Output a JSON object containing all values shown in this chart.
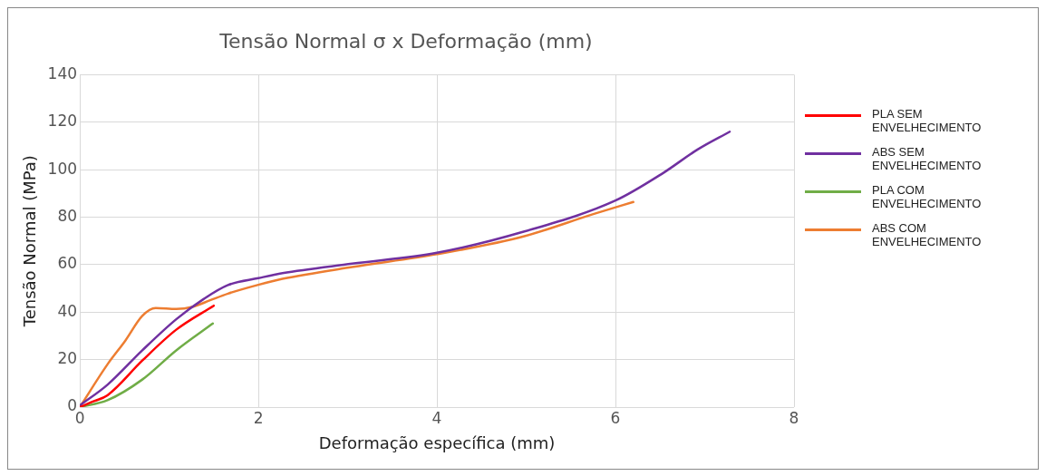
{
  "chart_data": {
    "type": "line",
    "title": "Tensão Normal σ x Deformação (mm)",
    "xlabel": "Deformação específica (mm)",
    "ylabel": "Tensão Normal (MPa)",
    "xlim": [
      0,
      8
    ],
    "xticks": [
      0,
      2,
      4,
      6,
      8
    ],
    "ylim": [
      0,
      140
    ],
    "yticks": [
      0,
      20,
      40,
      60,
      80,
      100,
      120,
      140
    ],
    "grid": true,
    "legend": "right",
    "marker": "none",
    "line_style": "solid",
    "series": [
      {
        "name": "PLA SEM ENVELHECIMENTO",
        "color": "#ff0000",
        "x": [
          0,
          0.16,
          0.31,
          0.7,
          1.08,
          1.5
        ],
        "values": [
          0,
          2.5,
          5,
          19.6,
          32.6,
          42.7
        ]
      },
      {
        "name": "ABS SEM ENVELHECIMENTO",
        "color": "#7030a0",
        "x": [
          0,
          0.31,
          0.7,
          1.08,
          1.39,
          1.66,
          2.0,
          2.27,
          3.05,
          4,
          4.98,
          6,
          6.53,
          6.92,
          7.28
        ],
        "values": [
          0.7,
          9.4,
          23.9,
          37,
          45.6,
          51.4,
          54.3,
          56.4,
          60.4,
          65,
          74,
          87,
          98.5,
          108.5,
          116
        ]
      },
      {
        "name": "PLA COM ENVELHECIMENTO",
        "color": "#70ad47",
        "x": [
          0,
          0.31,
          0.7,
          1.08,
          1.49
        ],
        "values": [
          0,
          2.9,
          11.6,
          23.9,
          35.2
        ]
      },
      {
        "name": " ABS COM ENVELHECIMENTO",
        "color": "#ed7d31",
        "x": [
          0,
          0.31,
          0.51,
          0.7,
          0.85,
          1.08,
          1.27,
          1.46,
          1.66,
          2.0,
          2.27,
          3.05,
          4,
          4.98,
          5.76,
          6.2
        ],
        "values": [
          0,
          18,
          28,
          38.4,
          41.7,
          41.3,
          42.3,
          45,
          47.8,
          51.5,
          54,
          59,
          64.4,
          72,
          81.4,
          86.4
        ]
      }
    ]
  }
}
